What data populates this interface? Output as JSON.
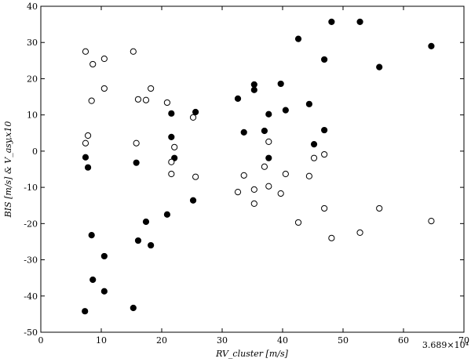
{
  "chart_data": {
    "type": "scatter",
    "x_label": "RV_cluster [m/s]",
    "y_label": "BIS [m/s] & V_asy,x10",
    "annotation": "3.689×10⁴",
    "xlim": [
      0,
      70
    ],
    "xticks": [
      0,
      10,
      20,
      30,
      40,
      50,
      60,
      70
    ],
    "ylim": [
      -50,
      40
    ],
    "yticks": [
      -50,
      -40,
      -30,
      -20,
      -10,
      0,
      10,
      20,
      30,
      40
    ],
    "series": [
      {
        "color": "#000000",
        "filled": true,
        "x": [
          7.4,
          7.8,
          8.4,
          8.6,
          10.5,
          10.5,
          7.3,
          15.3,
          15.8,
          16.1,
          17.4,
          18.2,
          20.9,
          21.6,
          21.6,
          22.1,
          25.6,
          25.2,
          32.6,
          33.6,
          35.3,
          35.3,
          37.0,
          37.7,
          37.7,
          39.7,
          40.5,
          42.6,
          44.4,
          45.2,
          46.9,
          46.9,
          48.1,
          52.8,
          56.0,
          64.6
        ],
        "values": [
          -1.7,
          -4.5,
          -23.2,
          -35.5,
          -29,
          -38.7,
          -44.2,
          -43.3,
          -3.2,
          -24.7,
          -19.5,
          -26,
          -17.5,
          3.9,
          10.4,
          -1.9,
          10.8,
          -13.6,
          14.5,
          5.2,
          18.4,
          16.9,
          5.6,
          10.2,
          -1.9,
          18.6,
          11.3,
          31,
          13,
          1.9,
          25.3,
          5.8,
          35.7,
          35.7,
          23.2,
          29
        ]
      },
      {
        "color": "#000000",
        "filled": false,
        "x": [
          7.4,
          8.6,
          10.5,
          10.5,
          8.4,
          7.8,
          7.4,
          15.3,
          16.1,
          17.4,
          18.2,
          15.8,
          20.9,
          21.6,
          21.6,
          22.1,
          25.2,
          25.6,
          32.6,
          33.6,
          35.3,
          35.3,
          37.0,
          37.7,
          37.7,
          39.7,
          40.5,
          42.6,
          44.4,
          45.2,
          46.9,
          46.9,
          48.1,
          52.8,
          56.0,
          64.6
        ],
        "values": [
          27.5,
          24,
          25.5,
          17.3,
          13.9,
          4.3,
          2.2,
          27.5,
          14.3,
          14.1,
          17.3,
          2.2,
          13.4,
          -3,
          -6.3,
          1.1,
          9.3,
          -7.1,
          -11.3,
          -6.7,
          -10.6,
          -14.5,
          -4.3,
          2.6,
          -9.7,
          -11.7,
          -6.3,
          -19.7,
          -6.9,
          -1.9,
          -0.9,
          -15.8,
          -24,
          -22.5,
          -15.8,
          -19.3
        ]
      }
    ]
  }
}
